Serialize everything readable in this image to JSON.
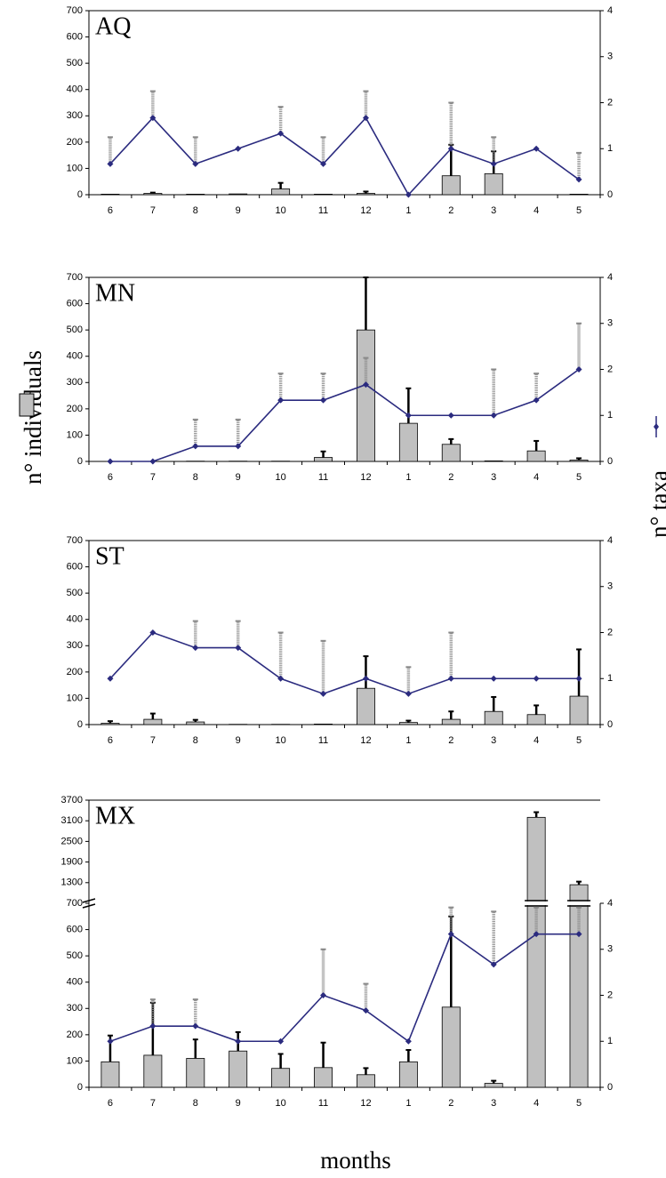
{
  "y_label": "n° individuals",
  "y2_label": "n° taxa",
  "x_label": "months",
  "chart_data": [
    {
      "type": "bar",
      "label": "AQ",
      "categories": [
        "6",
        "7",
        "8",
        "9",
        "10",
        "11",
        "12",
        "1",
        "2",
        "3",
        "4",
        "5"
      ],
      "series": [
        {
          "type": "bar",
          "color": "#c0c0c0",
          "error_color": "#000000",
          "values": [
            2,
            5,
            2,
            3,
            22,
            2,
            5,
            0,
            72,
            80,
            0,
            2
          ],
          "errors": [
            null,
            3,
            null,
            null,
            23,
            null,
            7,
            null,
            118,
            85,
            null,
            null
          ]
        },
        {
          "type": "line",
          "axis": "y2",
          "color": "#2b2b7f",
          "error_color": "#8a8a8a",
          "values": [
            0.67,
            1.67,
            0.67,
            1,
            1.33,
            0.67,
            1.67,
            0,
            1,
            0.67,
            1,
            0.33
          ],
          "errors": [
            0.58,
            0.58,
            0.58,
            null,
            0.58,
            0.58,
            0.58,
            null,
            1,
            0.58,
            null,
            0.58
          ]
        }
      ],
      "ylim": [
        0,
        700
      ],
      "yticks": [
        0,
        100,
        200,
        300,
        400,
        500,
        600,
        700
      ],
      "y2lim": [
        0,
        4
      ],
      "y2ticks": [
        0,
        1,
        2,
        3,
        4
      ]
    },
    {
      "type": "bar",
      "label": "MN",
      "categories": [
        "6",
        "7",
        "8",
        "9",
        "10",
        "11",
        "12",
        "1",
        "2",
        "3",
        "4",
        "5"
      ],
      "series": [
        {
          "type": "bar",
          "color": "#c0c0c0",
          "error_color": "#000000",
          "values": [
            0,
            0,
            1,
            1,
            1,
            15,
            500,
            145,
            65,
            2,
            40,
            5
          ],
          "errors": [
            null,
            null,
            null,
            null,
            null,
            23,
            200,
            133,
            20,
            null,
            38,
            7
          ]
        },
        {
          "type": "line",
          "axis": "y2",
          "color": "#2b2b7f",
          "error_color": "#8a8a8a",
          "values": [
            0,
            0,
            0.33,
            0.33,
            1.33,
            1.33,
            1.67,
            1,
            1,
            1,
            1.33,
            2
          ],
          "errors": [
            null,
            null,
            0.58,
            0.58,
            0.58,
            0.58,
            0.58,
            null,
            null,
            1,
            0.58,
            1
          ]
        }
      ],
      "ylim": [
        0,
        700
      ],
      "yticks": [
        0,
        100,
        200,
        300,
        400,
        500,
        600,
        700
      ],
      "y2lim": [
        0,
        4
      ],
      "y2ticks": [
        0,
        1,
        2,
        3,
        4
      ]
    },
    {
      "type": "bar",
      "label": "ST",
      "categories": [
        "6",
        "7",
        "8",
        "9",
        "10",
        "11",
        "12",
        "1",
        "2",
        "3",
        "4",
        "5"
      ],
      "series": [
        {
          "type": "bar",
          "color": "#c0c0c0",
          "error_color": "#000000",
          "values": [
            5,
            20,
            10,
            1,
            1,
            2,
            138,
            8,
            20,
            50,
            38,
            108
          ],
          "errors": [
            8,
            22,
            8,
            null,
            null,
            null,
            122,
            7,
            30,
            55,
            35,
            178
          ]
        },
        {
          "type": "line",
          "axis": "y2",
          "color": "#2b2b7f",
          "error_color": "#8a8a8a",
          "values": [
            1,
            2,
            1.67,
            1.67,
            1,
            0.67,
            1,
            0.67,
            1,
            1,
            1,
            1
          ],
          "errors": [
            null,
            null,
            0.58,
            0.58,
            1,
            1.15,
            null,
            0.58,
            1,
            null,
            null,
            null
          ]
        }
      ],
      "ylim": [
        0,
        700
      ],
      "yticks": [
        0,
        100,
        200,
        300,
        400,
        500,
        600,
        700
      ],
      "y2lim": [
        0,
        4
      ],
      "y2ticks": [
        0,
        1,
        2,
        3,
        4
      ]
    },
    {
      "type": "bar",
      "label": "MX",
      "categories": [
        "6",
        "7",
        "8",
        "9",
        "10",
        "11",
        "12",
        "1",
        "2",
        "3",
        "4",
        "5"
      ],
      "series": [
        {
          "type": "bar",
          "color": "#c0c0c0",
          "error_color": "#000000",
          "values": [
            97,
            122,
            110,
            138,
            72,
            75,
            48,
            97,
            305,
            15,
            3200,
            1240
          ],
          "errors": [
            100,
            200,
            72,
            72,
            55,
            95,
            25,
            45,
            345,
            10,
            150,
            90
          ]
        },
        {
          "type": "line",
          "axis": "y2",
          "color": "#2b2b7f",
          "error_color": "#8a8a8a",
          "values": [
            1,
            1.33,
            1.33,
            1,
            1,
            2,
            1.67,
            1,
            3.33,
            2.67,
            3.33,
            3.33
          ],
          "errors": [
            null,
            0.58,
            0.58,
            null,
            null,
            1,
            0.58,
            null,
            0.58,
            1.15,
            0.58,
            0.58
          ]
        }
      ],
      "ylim": [
        0,
        3700
      ],
      "y_break": 700,
      "yticks": [
        0,
        100,
        200,
        300,
        400,
        500,
        600,
        700,
        1300,
        1900,
        2500,
        3100,
        3700
      ],
      "y2lim": [
        0,
        4
      ],
      "y2ticks": [
        0,
        1,
        2,
        3,
        4
      ]
    }
  ]
}
